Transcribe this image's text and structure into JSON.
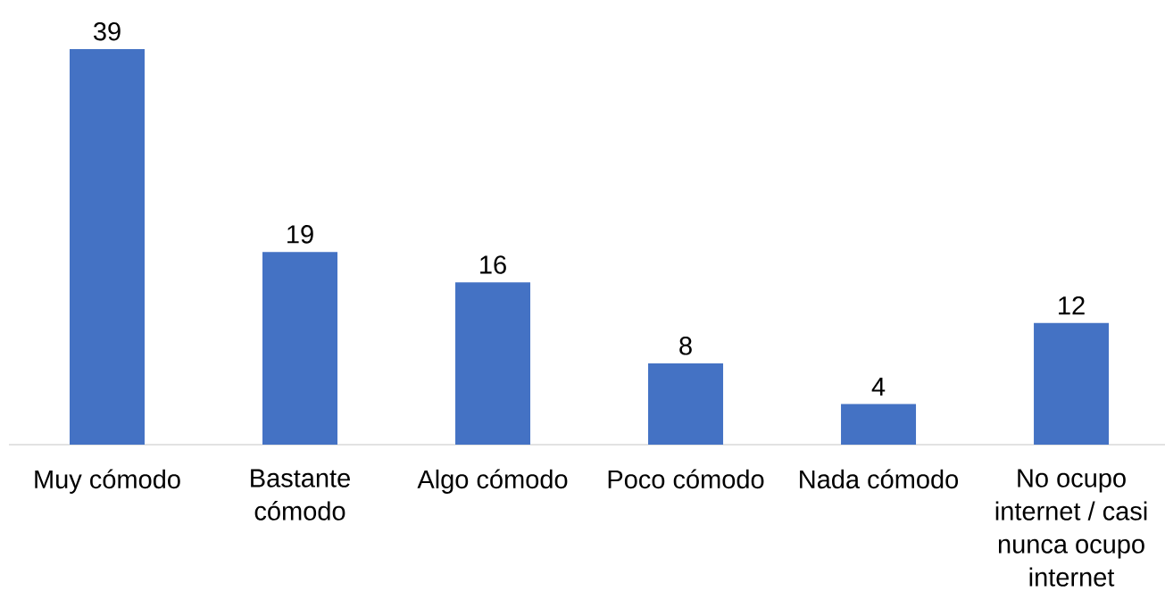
{
  "chart_data": {
    "type": "bar",
    "categories": [
      "Muy cómodo",
      "Bastante cómodo",
      "Algo cómodo",
      "Poco cómodo",
      "Nada cómodo",
      "No ocupo internet / casi nunca ocupo internet"
    ],
    "values": [
      39,
      19,
      16,
      8,
      4,
      12
    ],
    "color": "#4472c4",
    "data_labels": true,
    "tick_labels": "x"
  }
}
